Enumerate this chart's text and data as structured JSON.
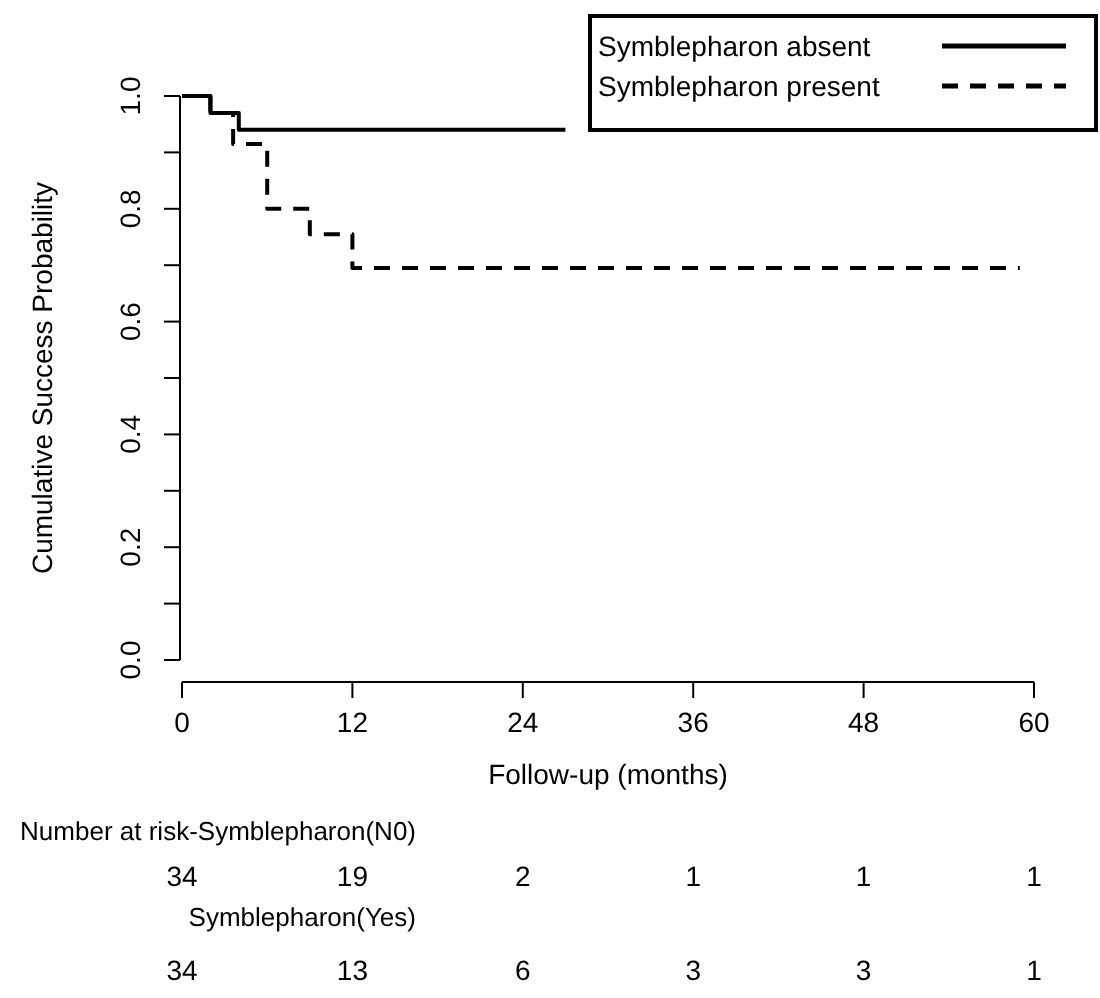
{
  "chart_data": {
    "type": "step",
    "xlabel": "Follow-up (months)",
    "ylabel": "Cumulative Success Probability",
    "xlim": [
      0,
      60
    ],
    "xticks": [
      0,
      12,
      24,
      36,
      48,
      60
    ],
    "ylim": [
      0,
      1
    ],
    "yticks": [
      {
        "value": 0,
        "label": "0.0"
      },
      {
        "value": 0.1,
        "label": null
      },
      {
        "value": 0.2,
        "label": "0.2"
      },
      {
        "value": 0.3,
        "label": null
      },
      {
        "value": 0.4,
        "label": "0.4"
      },
      {
        "value": 0.5,
        "label": null
      },
      {
        "value": 0.6,
        "label": "0.6"
      },
      {
        "value": 0.7,
        "label": null
      },
      {
        "value": 0.8,
        "label": "0.8"
      },
      {
        "value": 0.9,
        "label": null
      },
      {
        "value": 1,
        "label": "1.0"
      }
    ],
    "series": [
      {
        "name": "Symblepharon absent",
        "color": "#000000",
        "line_style": "solid",
        "x": [
          0,
          2,
          4,
          27
        ],
        "values": [
          1,
          0.97,
          0.94,
          0.94
        ]
      },
      {
        "name": "Symblepharon present",
        "color": "#000000",
        "line_style": "dashed",
        "x": [
          0,
          2,
          3.6,
          6,
          9,
          12,
          59
        ],
        "values": [
          1,
          0.97,
          0.915,
          0.8,
          0.755,
          0.695,
          0.695
        ]
      }
    ],
    "legend": "top right",
    "grid": false,
    "annotations": [
      "Number at risk-Symblepharon(N0)",
      "34 19 2 1 1 1",
      "Symblepharon(Yes)",
      "34 13 6 3 3 1"
    ]
  }
}
